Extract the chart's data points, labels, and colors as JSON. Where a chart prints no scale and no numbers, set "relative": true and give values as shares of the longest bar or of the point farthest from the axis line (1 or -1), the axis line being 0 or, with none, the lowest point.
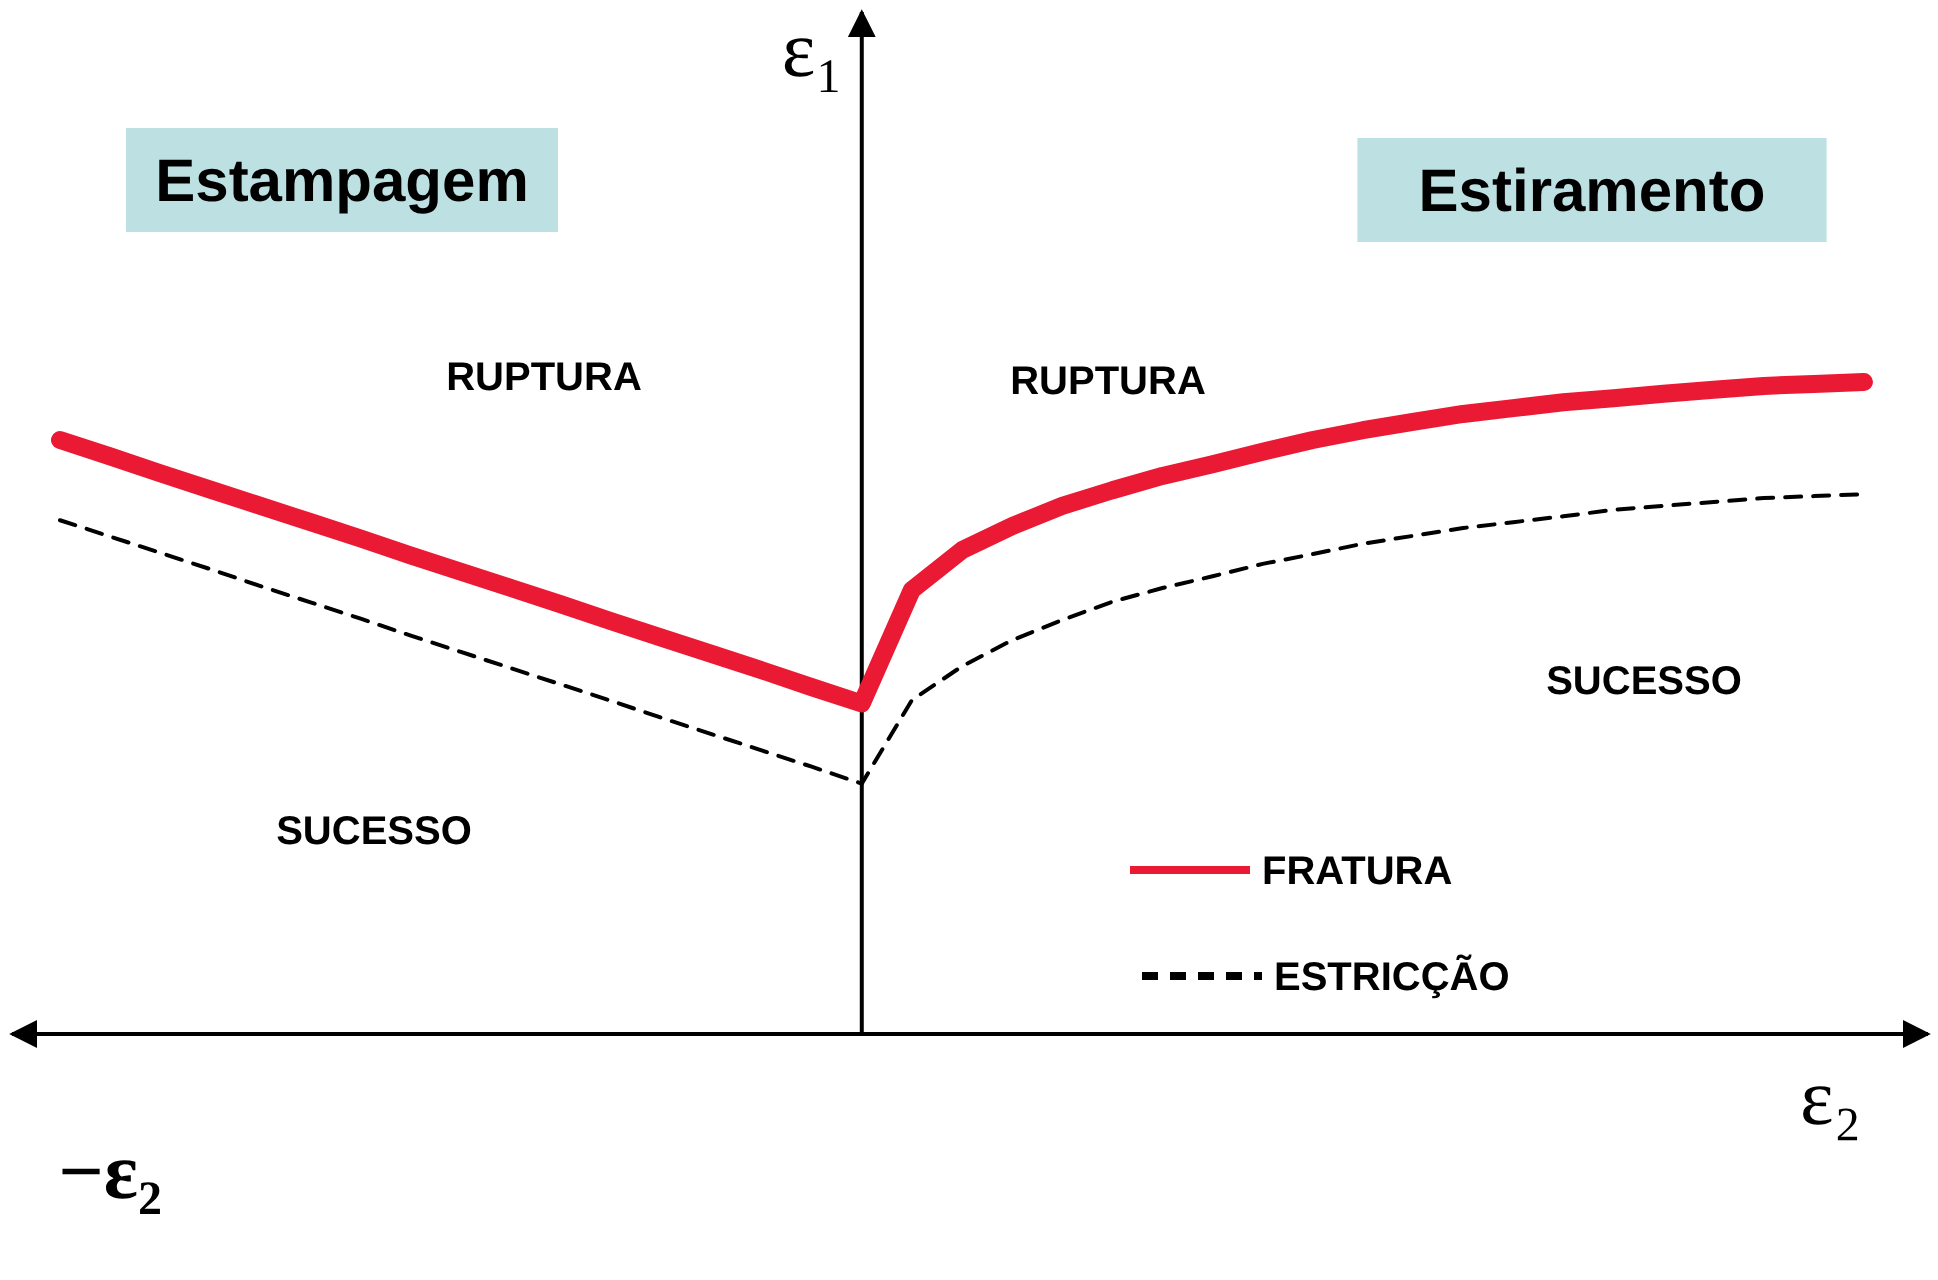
{
  "chart_data": {
    "type": "line",
    "relative": true,
    "xlabel": "ε₂",
    "ylabel": "ε₁",
    "legend": "bottom right",
    "categories": [
      null,
      null,
      null,
      null,
      null,
      null,
      null,
      null,
      null,
      null,
      null,
      null,
      null,
      null,
      null,
      null,
      null,
      null,
      null,
      null,
      null,
      null,
      null,
      null,
      null,
      null,
      null,
      null,
      null,
      null,
      null,
      null,
      null,
      null,
      null,
      null,
      null
    ],
    "series": [
      {
        "name": "FRATURA",
        "color": "#ea1a35",
        "line_style": "solid",
        "values": [
          0.911,
          0.886,
          0.86,
          0.835,
          0.81,
          0.785,
          0.76,
          0.734,
          0.709,
          0.684,
          0.659,
          0.633,
          0.608,
          0.583,
          0.558,
          0.532,
          0.507,
          0.681,
          0.742,
          0.779,
          0.81,
          0.834,
          0.856,
          0.874,
          0.893,
          0.911,
          0.926,
          0.939,
          0.951,
          0.96,
          0.969,
          0.975,
          0.982,
          0.988,
          0.994,
          0.997,
          1
        ]
      },
      {
        "name": "ESTRICÇÃO",
        "color": "#000000",
        "line_style": "dashed",
        "values": [
          0.788,
          0.763,
          0.738,
          0.713,
          0.687,
          0.662,
          0.637,
          0.611,
          0.586,
          0.561,
          0.536,
          0.511,
          0.485,
          0.46,
          0.435,
          0.41,
          0.384,
          0.512,
          0.564,
          0.604,
          0.635,
          0.663,
          0.684,
          0.702,
          0.721,
          0.736,
          0.752,
          0.764,
          0.776,
          0.785,
          0.794,
          0.804,
          0.81,
          0.816,
          0.822,
          0.825,
          0.828
        ]
      }
    ],
    "annotations": [
      "Estampagem",
      "Estiramento",
      "RUPTURA",
      "RUPTURA",
      "SUCESSO",
      "SUCESSO",
      "−ε₂"
    ]
  }
}
